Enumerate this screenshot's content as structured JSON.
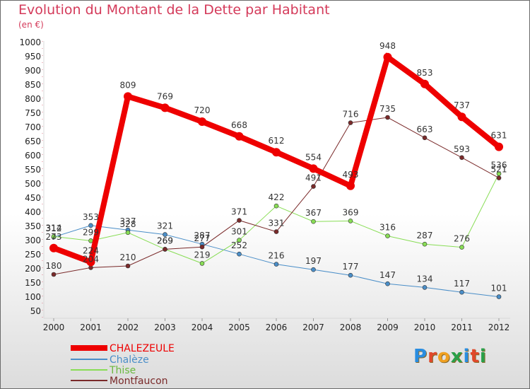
{
  "title": "Evolution du Montant de la Dette par Habitant",
  "subtitle": "(en €)",
  "logo": {
    "text": "Proxiti",
    "colors": [
      "#2a8de0",
      "#e0482a",
      "#f0a020",
      "#2aa04a",
      "#2a8de0",
      "#e0482a",
      "#2aa04a"
    ]
  },
  "chart_data": {
    "type": "line",
    "title": "Evolution du Montant de la Dette par Habitant",
    "subtitle": "(en €)",
    "x": [
      "2000",
      "2001",
      "2002",
      "2003",
      "2004",
      "2005",
      "2006",
      "2007",
      "2008",
      "2009",
      "2010",
      "2011",
      "2012"
    ],
    "yticks": [
      50,
      100,
      150,
      200,
      250,
      300,
      350,
      400,
      450,
      500,
      550,
      600,
      650,
      700,
      750,
      800,
      850,
      900,
      950,
      1000
    ],
    "ylim": [
      50,
      1000
    ],
    "grid": false,
    "legend_position": "bottom-left",
    "series": [
      {
        "name": "CHALEZEULE",
        "color": "#ee0000",
        "width": 8,
        "values": [
          273,
          224,
          809,
          769,
          720,
          668,
          612,
          554,
          493,
          948,
          853,
          737,
          631
        ],
        "labels": [
          "273",
          "224",
          "809",
          "769",
          "720",
          "668",
          "612",
          "554",
          "493",
          "948",
          "853",
          "737",
          "631"
        ]
      },
      {
        "name": "Chalèze",
        "color": "#4a8ec8",
        "width": 1,
        "values": [
          312,
          353,
          337,
          321,
          287,
          252,
          216,
          197,
          177,
          147,
          134,
          117,
          101
        ],
        "labels": [
          "312",
          "353",
          "337",
          "321",
          "287",
          "252",
          "216",
          "197",
          "177",
          "147",
          "134",
          "117",
          "101"
        ]
      },
      {
        "name": "Thise",
        "color": "#88dd55",
        "width": 1,
        "values": [
          314,
          299,
          328,
          269,
          219,
          301,
          422,
          367,
          369,
          316,
          287,
          276,
          536
        ],
        "labels": [
          "314",
          "299",
          "328",
          "269",
          "219",
          "301",
          "422",
          "367",
          "369",
          "316",
          "287",
          "276",
          "536"
        ]
      },
      {
        "name": "Montfaucon",
        "color": "#7a2a2a",
        "width": 1,
        "values": [
          180,
          204,
          210,
          269,
          277,
          371,
          331,
          491,
          716,
          735,
          663,
          593,
          521
        ],
        "labels": [
          "180",
          "204",
          "210",
          "269",
          "277",
          "371",
          "331",
          "491",
          "716",
          "735",
          "663",
          "593",
          "521"
        ]
      }
    ]
  }
}
